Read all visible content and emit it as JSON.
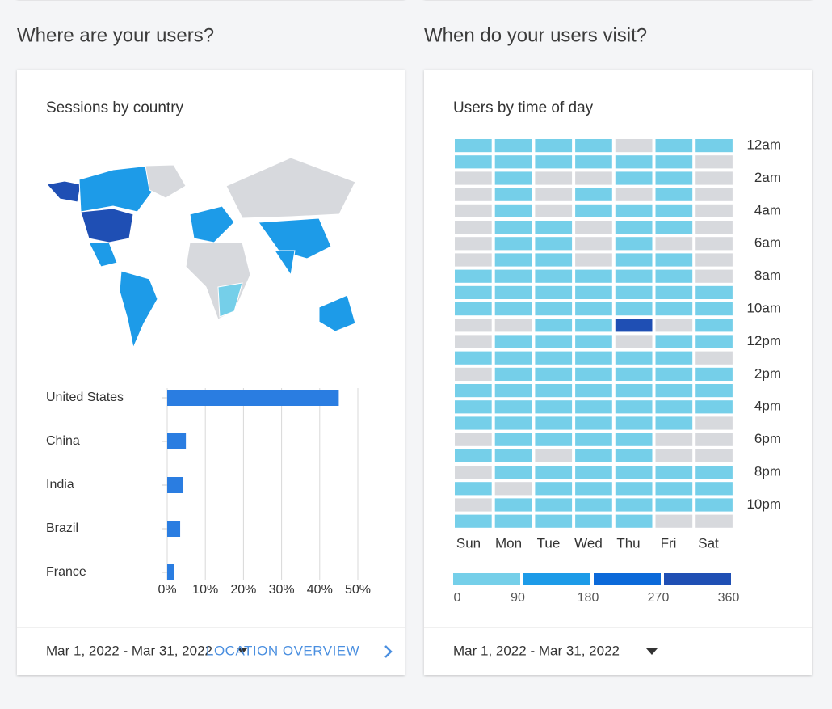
{
  "headings": [
    "Where are your users?",
    "When do your users visit?"
  ],
  "chart_data": [
    {
      "type": "hbar",
      "title": "Sessions by country",
      "categories": [
        "United States",
        "China",
        "India",
        "Brazil",
        "France"
      ],
      "values": [
        45,
        4.9,
        4.2,
        3.4,
        1.7
      ],
      "color": "#2a7de1",
      "xlim": [
        0,
        50
      ],
      "xticks": [
        {
          "value": 0,
          "label": "0%"
        },
        {
          "value": 10,
          "label": "10%"
        },
        {
          "value": 20,
          "label": "20%"
        },
        {
          "value": 30,
          "label": "30%"
        },
        {
          "value": 40,
          "label": "40%"
        },
        {
          "value": 50,
          "label": "50%"
        }
      ],
      "grid": true
    },
    {
      "type": "heatmap",
      "title": "Users by time of day",
      "x": [
        "Sun",
        "Mon",
        "Tue",
        "Wed",
        "Thu",
        "Fri",
        "Sat"
      ],
      "y": [
        "12am",
        null,
        "2am",
        null,
        "4am",
        null,
        "6am",
        null,
        "8am",
        null,
        "10am",
        null,
        "12pm",
        null,
        "2pm",
        null,
        "4pm",
        null,
        "6pm",
        null,
        "8pm",
        null,
        "10pm",
        null
      ],
      "values": [
        [
          20,
          20,
          20,
          20,
          0,
          20,
          20
        ],
        [
          20,
          20,
          20,
          20,
          20,
          20,
          0
        ],
        [
          0,
          20,
          0,
          0,
          20,
          20,
          0
        ],
        [
          0,
          20,
          0,
          20,
          0,
          20,
          0
        ],
        [
          0,
          20,
          0,
          20,
          20,
          20,
          0
        ],
        [
          0,
          20,
          20,
          0,
          20,
          20,
          0
        ],
        [
          0,
          20,
          20,
          0,
          20,
          0,
          0
        ],
        [
          0,
          20,
          20,
          0,
          20,
          20,
          0
        ],
        [
          20,
          20,
          20,
          20,
          20,
          20,
          0
        ],
        [
          20,
          20,
          20,
          20,
          20,
          20,
          20
        ],
        [
          20,
          20,
          20,
          20,
          20,
          20,
          20
        ],
        [
          0,
          0,
          20,
          20,
          320,
          0,
          20
        ],
        [
          0,
          20,
          20,
          20,
          0,
          20,
          20
        ],
        [
          20,
          20,
          20,
          20,
          20,
          20,
          0
        ],
        [
          0,
          20,
          20,
          20,
          20,
          20,
          20
        ],
        [
          20,
          20,
          20,
          20,
          20,
          20,
          20
        ],
        [
          20,
          20,
          20,
          20,
          20,
          20,
          20
        ],
        [
          20,
          20,
          20,
          20,
          20,
          20,
          0
        ],
        [
          0,
          20,
          20,
          20,
          20,
          0,
          0
        ],
        [
          20,
          20,
          0,
          20,
          20,
          0,
          0
        ],
        [
          0,
          20,
          20,
          20,
          20,
          20,
          20
        ],
        [
          20,
          0,
          20,
          20,
          20,
          20,
          20
        ],
        [
          0,
          20,
          20,
          20,
          20,
          20,
          20
        ],
        [
          20,
          20,
          20,
          20,
          20,
          0,
          0
        ]
      ],
      "legend_bins": [
        0,
        90,
        180,
        270,
        360
      ],
      "legend_colors": [
        "#75cfe9",
        "#1d9be8",
        "#0b69d9",
        "#1f4fb4"
      ],
      "empty_color": "#d7d9dd"
    }
  ],
  "footers": [
    {
      "date_range": "Mar 1, 2022 - Mar 31, 2022",
      "link": "LOCATION OVERVIEW"
    },
    {
      "date_range": "Mar 1, 2022 - Mar 31, 2022"
    }
  ]
}
